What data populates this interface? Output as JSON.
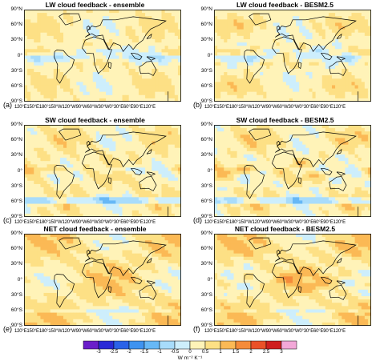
{
  "chart_data": {
    "type": "heatmap",
    "panels": [
      {
        "label": "(a)",
        "title": "LW cloud feedback - ensemble",
        "variable": "LW",
        "model": "ensemble"
      },
      {
        "label": "(b)",
        "title": "LW cloud feedback - BESM2.5",
        "variable": "LW",
        "model": "BESM2.5"
      },
      {
        "label": "(c)",
        "title": "SW cloud feedback - ensemble",
        "variable": "SW",
        "model": "ensemble"
      },
      {
        "label": "(d)",
        "title": "SW cloud feedback - BESM2.5",
        "variable": "SW",
        "model": "BESM2.5"
      },
      {
        "label": "(e)",
        "title": "NET cloud feedback - ensemble",
        "variable": "NET",
        "model": "ensemble"
      },
      {
        "label": "(f)",
        "title": "NET cloud feedback - BESM2.5",
        "variable": "NET",
        "model": "BESM2.5"
      }
    ],
    "lat_ticks": [
      "90°N",
      "60°N",
      "30°N",
      "0°",
      "30°S",
      "60°S",
      "90°S"
    ],
    "lon_ticks": [
      "120°E",
      "150°E",
      "180°",
      "150°W",
      "120°W",
      "90°W",
      "60°W",
      "30°W",
      "0°",
      "30°E",
      "60°E",
      "90°E",
      "120°E"
    ],
    "colorbar": {
      "ticks": [
        "-3",
        "-2.5",
        "-2",
        "-1.5",
        "-1",
        "-0.5",
        "0",
        "0.5",
        "1",
        "1.5",
        "2",
        "2.5",
        "3"
      ],
      "colors": [
        "#6a1fc9",
        "#2a2ad6",
        "#2b62e8",
        "#3f93f0",
        "#67b8f6",
        "#a8dcfb",
        "#cdeefc",
        "#fff3b8",
        "#fde085",
        "#fbb955",
        "#f58b3a",
        "#ea5128",
        "#cf1f1f",
        "#f3a8d8"
      ],
      "units": "W m⁻² K⁻¹"
    }
  }
}
